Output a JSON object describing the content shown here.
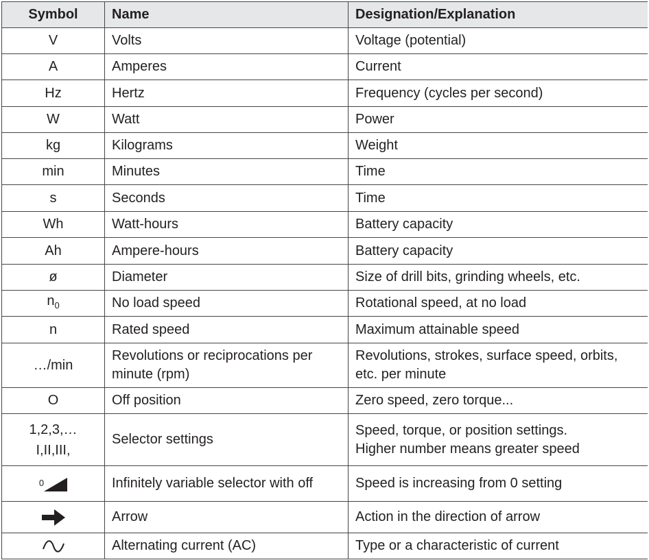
{
  "header": {
    "symbol": "Symbol",
    "name": "Name",
    "designation": "Designation/Explanation"
  },
  "rows": [
    {
      "symbol": "V",
      "name": "Volts",
      "designation": "Voltage (potential)"
    },
    {
      "symbol": "A",
      "name": "Amperes",
      "designation": "Current"
    },
    {
      "symbol": "Hz",
      "name": "Hertz",
      "designation": "Frequency (cycles per second)"
    },
    {
      "symbol": "W",
      "name": "Watt",
      "designation": "Power"
    },
    {
      "symbol": "kg",
      "name": "Kilograms",
      "designation": "Weight"
    },
    {
      "symbol": "min",
      "name": "Minutes",
      "designation": "Time"
    },
    {
      "symbol": "s",
      "name": "Seconds",
      "designation": "Time"
    },
    {
      "symbol": "Wh",
      "name": "Watt-hours",
      "designation": "Battery capacity"
    },
    {
      "symbol": "Ah",
      "name": "Ampere-hours",
      "designation": "Battery capacity"
    },
    {
      "symbol": "ø",
      "name": "Diameter",
      "designation": "Size of drill bits, grinding wheels, etc."
    },
    {
      "symbol": "n",
      "symbol_sub": "0",
      "name": "No load speed",
      "designation": "Rotational speed, at no load"
    },
    {
      "symbol": "n",
      "name": "Rated speed",
      "designation": "Maximum attainable speed"
    },
    {
      "symbol": "…/min",
      "name": "Revolutions or reciprocations per minute (rpm)",
      "designation": "Revolutions, strokes, surface speed, orbits, etc. per minute"
    },
    {
      "symbol": "O",
      "name": "Off position",
      "designation": "Zero speed, zero torque..."
    },
    {
      "symbol": [
        "1,2,3,…",
        "I,II,III,"
      ],
      "name": "Selector settings",
      "designation": [
        "Speed, torque, or position settings.",
        "Higher number means greater speed"
      ]
    },
    {
      "symbol": "0",
      "name": "Infinitely variable selector with off",
      "designation": "Speed is increasing from 0 setting"
    },
    {
      "name": "Arrow",
      "designation": "Action in the direction of arrow"
    },
    {
      "name": "Alternating current (AC)",
      "designation": "Type or a characteristic of current"
    }
  ]
}
